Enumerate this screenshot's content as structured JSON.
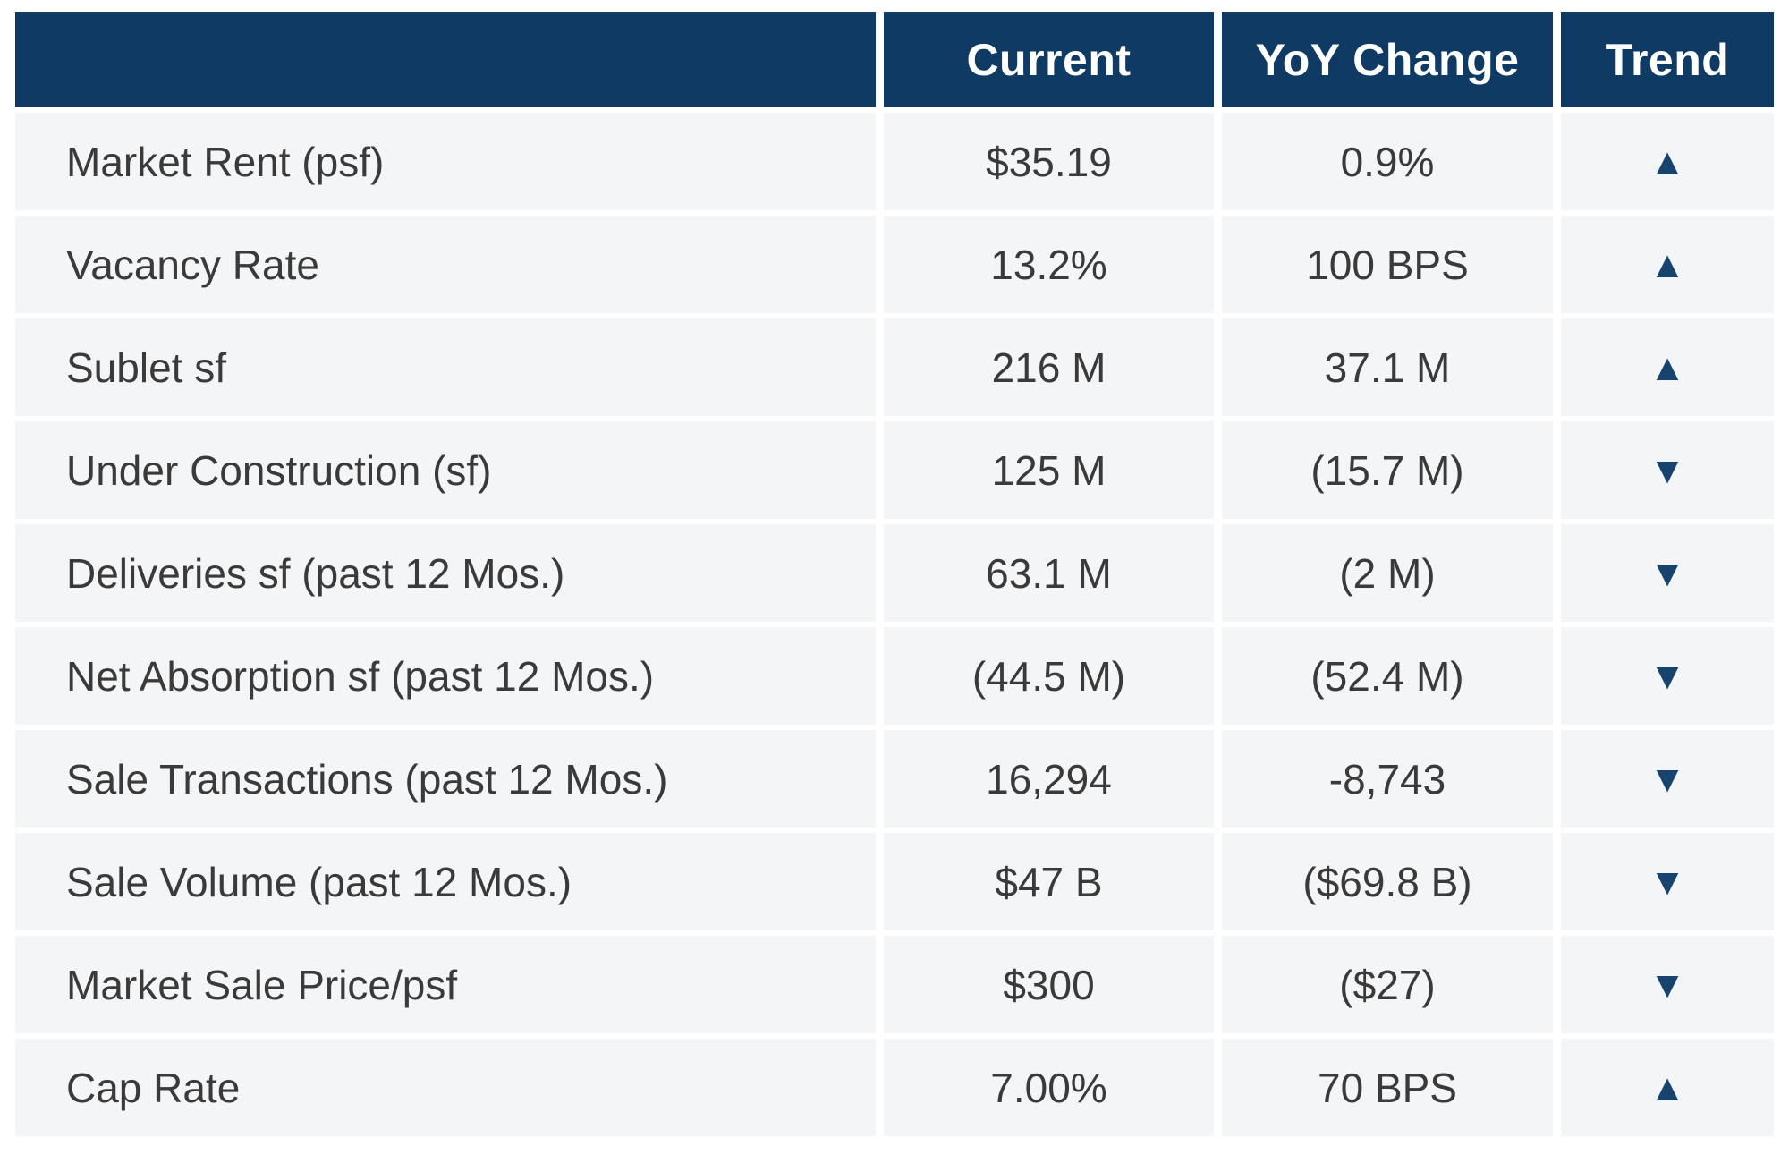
{
  "table": {
    "columns": [
      {
        "label": ""
      },
      {
        "label": "Current"
      },
      {
        "label": "YoY Change"
      },
      {
        "label": "Trend"
      }
    ],
    "rows": [
      {
        "metric": "Market Rent (psf)",
        "current": "$35.19",
        "yoy": "0.9%",
        "trend": "up"
      },
      {
        "metric": "Vacancy Rate",
        "current": "13.2%",
        "yoy": "100 BPS",
        "trend": "up"
      },
      {
        "metric": "Sublet sf",
        "current": "216 M",
        "yoy": "37.1 M",
        "trend": "up"
      },
      {
        "metric": "Under Construction (sf)",
        "current": "125 M",
        "yoy": "(15.7 M)",
        "trend": "down"
      },
      {
        "metric": "Deliveries sf (past 12 Mos.)",
        "current": "63.1 M",
        "yoy": "(2 M)",
        "trend": "down"
      },
      {
        "metric": "Net Absorption sf (past 12 Mos.)",
        "current": "(44.5 M)",
        "yoy": "(52.4 M)",
        "trend": "down"
      },
      {
        "metric": "Sale Transactions (past 12 Mos.)",
        "current": "16,294",
        "yoy": "-8,743",
        "trend": "down"
      },
      {
        "metric": "Sale Volume (past 12 Mos.)",
        "current": "$47 B",
        "yoy": "($69.8 B)",
        "trend": "down"
      },
      {
        "metric": "Market Sale Price/psf",
        "current": "$300",
        "yoy": "($27)",
        "trend": "down"
      },
      {
        "metric": "Cap Rate",
        "current": "7.00%",
        "yoy": "70 BPS",
        "trend": "up"
      }
    ]
  },
  "icons": {
    "up": "▲",
    "down": "▼"
  },
  "colors": {
    "header_bg": "#0f3a63",
    "header_text": "#ffffff",
    "cell_bg": "#f4f5f7",
    "text": "#3a3a3a",
    "trend": "#17446e"
  },
  "chart_data": {
    "type": "table",
    "title": "",
    "columns": [
      "",
      "Current",
      "YoY Change",
      "Trend"
    ],
    "rows": [
      [
        "Market Rent (psf)",
        "$35.19",
        "0.9%",
        "up"
      ],
      [
        "Vacancy Rate",
        "13.2%",
        "100 BPS",
        "up"
      ],
      [
        "Sublet sf",
        "216 M",
        "37.1 M",
        "up"
      ],
      [
        "Under Construction (sf)",
        "125 M",
        "(15.7 M)",
        "down"
      ],
      [
        "Deliveries sf (past 12 Mos.)",
        "63.1 M",
        "(2 M)",
        "down"
      ],
      [
        "Net Absorption sf (past 12 Mos.)",
        "(44.5 M)",
        "(52.4 M)",
        "down"
      ],
      [
        "Sale Transactions (past 12 Mos.)",
        "16,294",
        "-8,743",
        "down"
      ],
      [
        "Sale Volume (past 12 Mos.)",
        "$47 B",
        "($69.8 B)",
        "down"
      ],
      [
        "Market Sale Price/psf",
        "$300",
        "($27)",
        "down"
      ],
      [
        "Cap Rate",
        "7.00%",
        "70 BPS",
        "up"
      ]
    ],
    "layout": {
      "header_style": "dark-navy",
      "grid": "white-gaps",
      "legend": "none"
    }
  }
}
